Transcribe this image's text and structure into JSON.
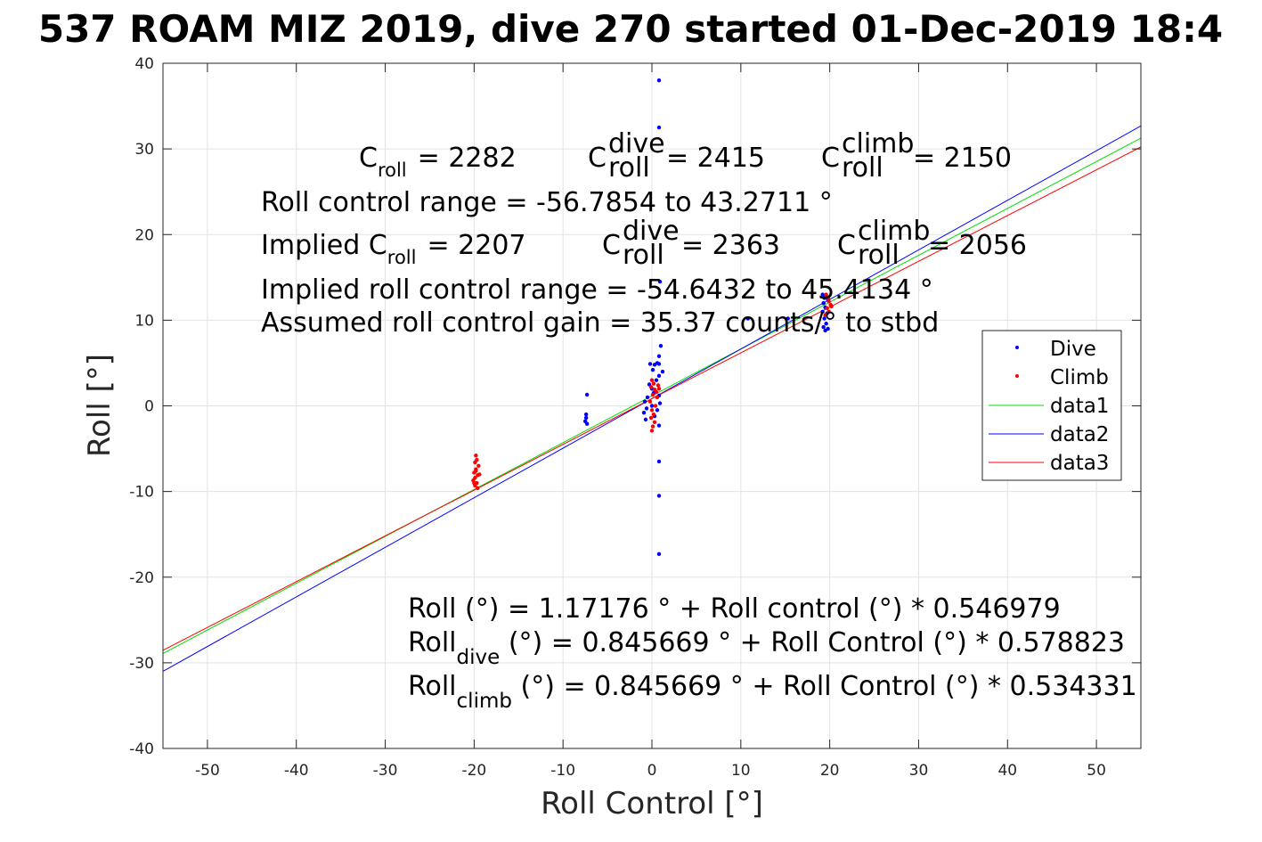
{
  "chart_data": {
    "type": "scatter",
    "title": "537 ROAM MIZ 2019, dive 270 started 01-Dec-2019 18:4",
    "xlabel": "Roll Control [°]",
    "ylabel": "Roll [°]",
    "xlim": [
      -55,
      55
    ],
    "ylim": [
      -40,
      40
    ],
    "xticks": [
      -50,
      -40,
      -30,
      -20,
      -10,
      0,
      10,
      20,
      30,
      40,
      50
    ],
    "yticks": [
      -40,
      -30,
      -20,
      -10,
      0,
      10,
      20,
      30,
      40
    ],
    "grid": true,
    "legend_position": "right",
    "series": [
      {
        "name": "Dive",
        "kind": "points",
        "color": "#0000ff",
        "points": [
          [
            0.8,
            38.0
          ],
          [
            0.8,
            32.5
          ],
          [
            0.9,
            14.5
          ],
          [
            1.0,
            7.0
          ],
          [
            0.8,
            5.8
          ],
          [
            0.8,
            4.9
          ],
          [
            0.6,
            5.0
          ],
          [
            0.3,
            4.8
          ],
          [
            -0.2,
            4.9
          ],
          [
            0.1,
            4.2
          ],
          [
            1.2,
            4.0
          ],
          [
            0.8,
            3.5
          ],
          [
            0.5,
            3.0
          ],
          [
            -0.3,
            2.5
          ],
          [
            0.0,
            2.0
          ],
          [
            0.2,
            1.5
          ],
          [
            0.8,
            1.2
          ],
          [
            -0.5,
            1.0
          ],
          [
            -0.8,
            0.5
          ],
          [
            0.0,
            0.0
          ],
          [
            0.9,
            0.3
          ],
          [
            -0.6,
            -0.3
          ],
          [
            0.6,
            -0.5
          ],
          [
            -0.9,
            -0.8
          ],
          [
            0.3,
            -1.2
          ],
          [
            -0.7,
            -1.6
          ],
          [
            0.8,
            -2.3
          ],
          [
            0.8,
            -6.5
          ],
          [
            0.8,
            -10.5
          ],
          [
            0.8,
            -17.3
          ],
          [
            -7.3,
            1.3
          ],
          [
            -7.4,
            -1.0
          ],
          [
            -7.4,
            -1.4
          ],
          [
            -7.5,
            -1.8
          ],
          [
            -7.3,
            -2.1
          ],
          [
            10.8,
            10.2
          ],
          [
            15.3,
            10.2
          ],
          [
            19.2,
            13.0
          ],
          [
            19.4,
            12.6
          ],
          [
            19.6,
            12.8
          ],
          [
            19.8,
            12.4
          ],
          [
            19.3,
            12.0
          ],
          [
            19.5,
            11.5
          ],
          [
            19.2,
            11.0
          ],
          [
            19.7,
            10.8
          ],
          [
            19.4,
            10.2
          ],
          [
            19.6,
            9.6
          ],
          [
            19.3,
            9.2
          ],
          [
            19.8,
            9.0
          ],
          [
            19.5,
            8.8
          ]
        ]
      },
      {
        "name": "Climb",
        "kind": "points",
        "color": "#ff0000",
        "points": [
          [
            -19.8,
            -5.8
          ],
          [
            -19.7,
            -6.3
          ],
          [
            -19.9,
            -6.6
          ],
          [
            -19.5,
            -7.0
          ],
          [
            -19.8,
            -7.4
          ],
          [
            -20.0,
            -7.8
          ],
          [
            -19.6,
            -8.1
          ],
          [
            -19.9,
            -8.4
          ],
          [
            -20.1,
            -8.7
          ],
          [
            -19.7,
            -9.0
          ],
          [
            -19.9,
            -9.3
          ],
          [
            -19.6,
            -9.6
          ],
          [
            -20.0,
            -9.0
          ],
          [
            -19.4,
            -8.0
          ],
          [
            -19.8,
            -7.6
          ],
          [
            0.0,
            3.0
          ],
          [
            0.2,
            2.6
          ],
          [
            -0.1,
            2.2
          ],
          [
            0.3,
            1.9
          ],
          [
            0.5,
            1.6
          ],
          [
            0.1,
            1.3
          ],
          [
            0.6,
            1.0
          ],
          [
            -0.2,
            0.5
          ],
          [
            0.4,
            0.0
          ],
          [
            0.0,
            -0.5
          ],
          [
            0.2,
            -1.0
          ],
          [
            -0.1,
            -1.4
          ],
          [
            0.3,
            -1.9
          ],
          [
            0.1,
            -2.4
          ],
          [
            0.0,
            -2.9
          ],
          [
            0.7,
            2.4
          ],
          [
            0.8,
            2.0
          ],
          [
            19.6,
            13.0
          ],
          [
            19.8,
            12.6
          ],
          [
            19.9,
            12.2
          ],
          [
            20.1,
            11.8
          ],
          [
            19.7,
            11.4
          ],
          [
            19.9,
            11.0
          ],
          [
            20.2,
            11.6
          ],
          [
            19.5,
            10.6
          ]
        ]
      },
      {
        "name": "data1",
        "kind": "line",
        "color": "#00dd00",
        "intercept": 1.17176,
        "slope": 0.546979
      },
      {
        "name": "data2",
        "kind": "line",
        "color": "#0000ff",
        "intercept": 0.845669,
        "slope": 0.578823
      },
      {
        "name": "data3",
        "kind": "line",
        "color": "#ff0000",
        "intercept": 0.845669,
        "slope": 0.534331
      }
    ],
    "annotations": {
      "c_roll_label": "C",
      "c_roll_sub": "roll",
      "c_roll_value": "= 2282",
      "c_dive_label": "C",
      "c_dive_sup": "dive",
      "c_dive_sub": "roll",
      "c_dive_value": "= 2415",
      "c_climb_label": "C",
      "c_climb_sup": "climb",
      "c_climb_sub": "roll",
      "c_climb_value": "= 2150",
      "range_line": "Roll control range = -56.7854 to 43.2711 °",
      "implied_label": "Implied C",
      "implied_sub": "roll",
      "implied_value": "= 2207",
      "implied_dive_label": "C",
      "implied_dive_sup": "dive",
      "implied_dive_sub": "roll",
      "implied_dive_value": "= 2363",
      "implied_climb_label": "C",
      "implied_climb_sup": "climb",
      "implied_climb_sub": "roll",
      "implied_climb_value": "= 2056",
      "implied_range_line": "Implied roll control range = -54.6432 to 45.4134 °",
      "gain_line": "Assumed roll control gain = 35.37 counts/° to stbd",
      "fit_line": "Roll (°) = 1.17176 ° + Roll control (°) * 0.546979",
      "fit_dive_label": "Roll",
      "fit_dive_sub": "dive",
      "fit_dive_rest": " (°) = 0.845669 ° + Roll Control (°) * 0.578823",
      "fit_climb_label": "Roll",
      "fit_climb_sub": "climb",
      "fit_climb_rest": " (°) = 0.845669 ° + Roll Control (°) * 0.534331"
    }
  }
}
